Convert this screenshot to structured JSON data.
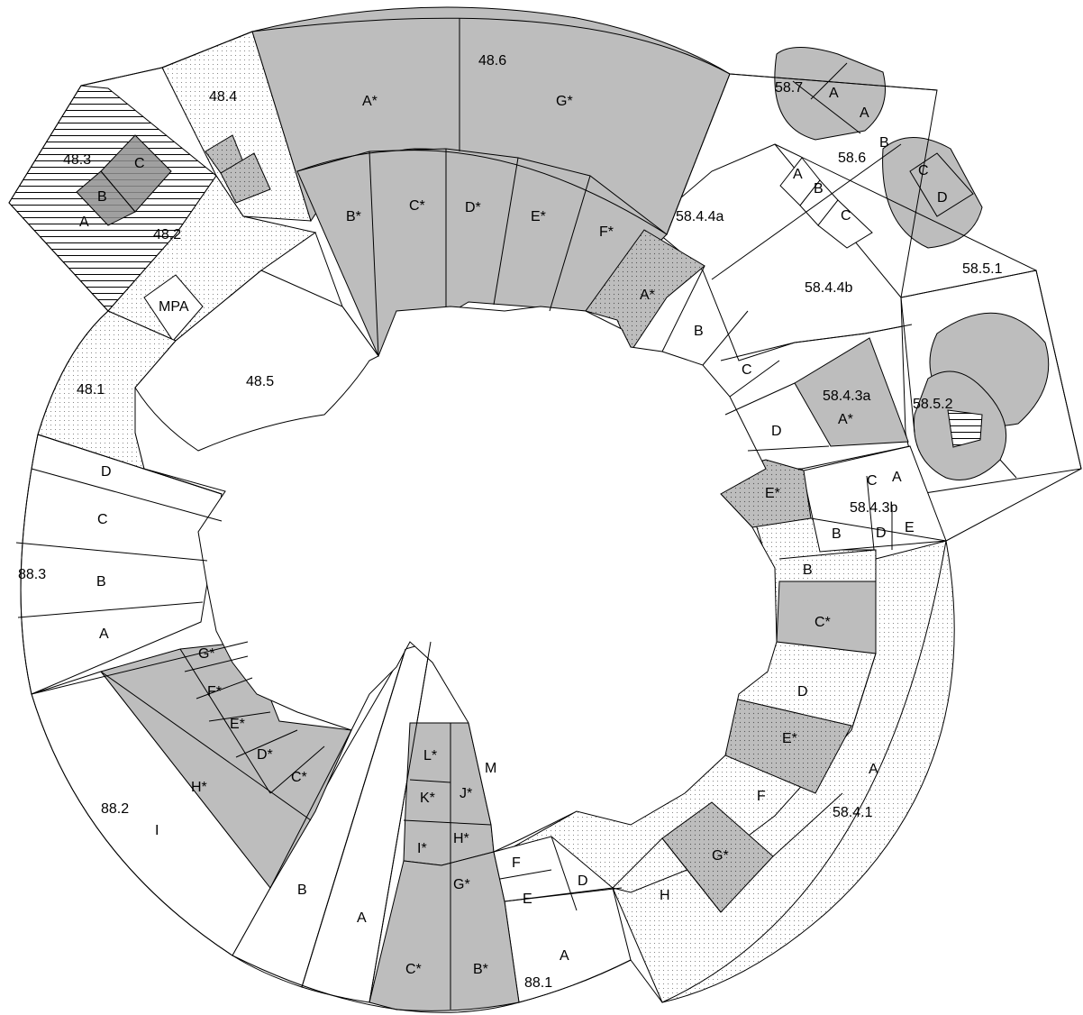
{
  "map": {
    "regions": {
      "r48_1": "48.1",
      "r48_2": "48.2",
      "r48_3": "48.3",
      "r48_4": "48.4",
      "r48_5": "48.5",
      "r48_6": "48.6",
      "r58_4_1": "58.4.1",
      "r58_4_3a": "58.4.3a",
      "r58_4_3b": "58.4.3b",
      "r58_4_4a": "58.4.4a",
      "r58_4_4b": "58.4.4b",
      "r58_5_1": "58.5.1",
      "r58_5_2": "58.5.2",
      "r58_6": "58.6",
      "r58_7": "58.7",
      "r88_1": "88.1",
      "r88_2": "88.2",
      "r88_3": "88.3",
      "mpa": "MPA"
    },
    "ssru": {
      "s48_6": [
        "A*",
        "G*",
        "B*",
        "C*",
        "D*",
        "E*",
        "F*"
      ],
      "s58_4_1": [
        "A*",
        "B",
        "C",
        "D",
        "E*",
        "B",
        "C*",
        "D",
        "E*",
        "F",
        "G*",
        "H",
        "A"
      ],
      "s58_4_3a": [
        "A*"
      ],
      "s58_4_3b": [
        "C",
        "A",
        "B",
        "D",
        "E"
      ],
      "s58_4_4a": [
        "A",
        "B",
        "C"
      ],
      "s58_6": [
        "B",
        "C",
        "D"
      ],
      "s58_7": [
        "A",
        "A"
      ],
      "s48_3": [
        "C",
        "B",
        "A"
      ],
      "s88_1": [
        "L*",
        "K*",
        "J*",
        "M",
        "I*",
        "H*",
        "G*",
        "F",
        "E",
        "D",
        "A",
        "C*",
        "B*",
        "A",
        "B"
      ],
      "s88_2": [
        "G*",
        "F*",
        "E*",
        "D*",
        "C*",
        "H*",
        "I"
      ],
      "s88_3": [
        "D",
        "C",
        "B",
        "A"
      ]
    }
  }
}
